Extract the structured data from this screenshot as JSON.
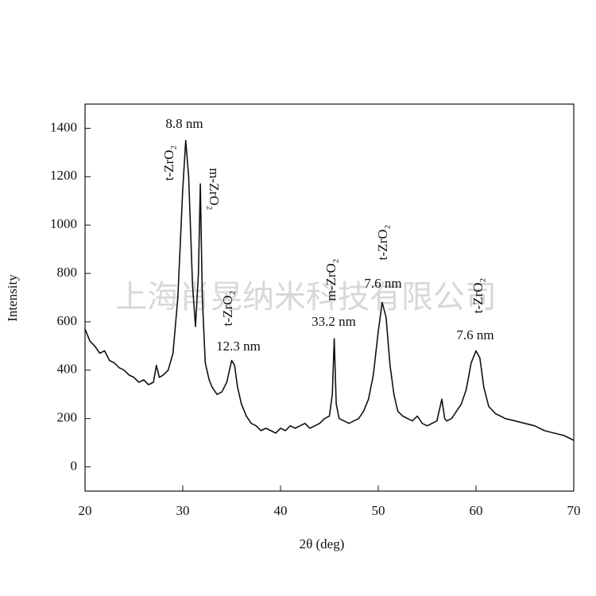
{
  "chart_data": {
    "type": "line",
    "x_label": "2θ (deg)",
    "y_label": "Intensity",
    "watermark": "上海肖晃纳米科技有限公司",
    "xlim": [
      20,
      70
    ],
    "xticks": [
      20,
      30,
      40,
      50,
      60,
      70
    ],
    "ylim": [
      -100,
      1500
    ],
    "yticks": [
      0,
      200,
      400,
      600,
      800,
      1000,
      1200,
      1400
    ],
    "color": "#111111",
    "annotations": [
      "8.8 nm",
      "t-ZrO₂",
      "m-ZrO₂",
      "t-ZrO₂",
      "12.3 nm",
      "m-ZrO₂",
      "33.2 nm",
      "t-ZrO₂",
      "7.6 nm",
      "t-ZrO₂",
      "7.6 nm"
    ],
    "x": [
      20,
      20.5,
      21,
      21.5,
      22,
      22.5,
      23,
      23.5,
      24,
      24.5,
      25,
      25.5,
      26,
      26.5,
      27,
      27.3,
      27.6,
      28,
      28.5,
      29,
      29.5,
      30,
      30.3,
      30.6,
      31,
      31.3,
      31.6,
      31.8,
      32,
      32.3,
      32.7,
      33,
      33.5,
      34,
      34.5,
      35,
      35.3,
      35.6,
      36,
      36.5,
      37,
      37.5,
      38,
      38.5,
      39,
      39.5,
      40,
      40.5,
      41,
      41.5,
      42,
      42.5,
      43,
      43.5,
      44,
      44.5,
      45,
      45.3,
      45.5,
      45.7,
      46,
      46.5,
      47,
      47.5,
      48,
      48.5,
      49,
      49.5,
      50,
      50.4,
      50.8,
      51.2,
      51.6,
      52,
      52.5,
      53,
      53.5,
      54,
      54.5,
      55,
      55.5,
      56,
      56.5,
      56.8,
      57,
      57.5,
      58,
      58.5,
      59,
      59.5,
      60,
      60.4,
      60.8,
      61.3,
      62,
      62.5,
      63,
      64,
      65,
      66,
      67,
      68,
      69,
      70
    ],
    "values": [
      570,
      520,
      500,
      470,
      480,
      440,
      430,
      410,
      400,
      380,
      370,
      350,
      360,
      340,
      350,
      420,
      370,
      380,
      400,
      470,
      700,
      1150,
      1350,
      1200,
      750,
      580,
      800,
      1170,
      700,
      430,
      360,
      330,
      300,
      310,
      350,
      440,
      420,
      330,
      260,
      210,
      180,
      170,
      150,
      160,
      150,
      140,
      160,
      150,
      170,
      160,
      170,
      180,
      160,
      170,
      180,
      200,
      210,
      300,
      530,
      260,
      200,
      190,
      180,
      190,
      200,
      230,
      280,
      380,
      560,
      680,
      620,
      420,
      300,
      230,
      210,
      200,
      190,
      210,
      180,
      170,
      180,
      190,
      280,
      200,
      190,
      200,
      230,
      260,
      320,
      430,
      480,
      450,
      330,
      250,
      220,
      210,
      200,
      190,
      180,
      170,
      150,
      140,
      130,
      110
    ]
  }
}
